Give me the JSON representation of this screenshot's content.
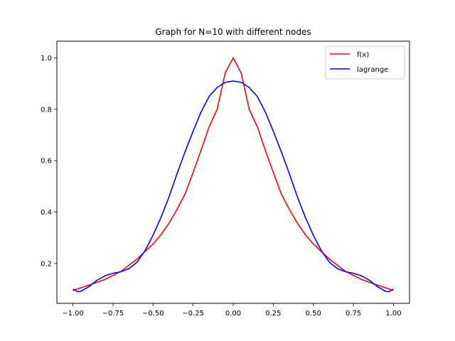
{
  "chart_data": {
    "type": "line",
    "title": "Graph for N=10 with different nodes",
    "xlabel": "",
    "ylabel": "",
    "xlim": [
      -1.1,
      1.1
    ],
    "ylim": [
      0.045,
      1.065
    ],
    "xticks": [
      -1.0,
      -0.75,
      -0.5,
      -0.25,
      0.0,
      0.25,
      0.5,
      0.75,
      1.0
    ],
    "xtick_labels": [
      "−1.00",
      "−0.75",
      "−0.50",
      "−0.25",
      "0.00",
      "0.25",
      "0.50",
      "0.75",
      "1.00"
    ],
    "yticks": [
      0.2,
      0.4,
      0.6,
      0.8,
      1.0
    ],
    "ytick_labels": [
      "0.2",
      "0.4",
      "0.6",
      "0.8",
      "1.0"
    ],
    "grid": false,
    "legend": "top-right",
    "series": [
      {
        "name": "f(x)",
        "color": "#ff0000",
        "x": [
          -1.0,
          -0.9,
          -0.8,
          -0.7,
          -0.6,
          -0.5,
          -0.45,
          -0.4,
          -0.35,
          -0.3,
          -0.25,
          -0.2,
          -0.15,
          -0.1,
          -0.05,
          0.0,
          0.05,
          0.1,
          0.15,
          0.2,
          0.25,
          0.3,
          0.35,
          0.4,
          0.45,
          0.5,
          0.6,
          0.7,
          0.8,
          0.9,
          1.0
        ],
        "y": [
          0.0952,
          0.1159,
          0.1379,
          0.1695,
          0.2174,
          0.2759,
          0.3125,
          0.3571,
          0.411,
          0.4706,
          0.5547,
          0.641,
          0.7323,
          0.8,
          0.9412,
          1.0,
          0.9412,
          0.8,
          0.7323,
          0.641,
          0.5547,
          0.4706,
          0.411,
          0.3571,
          0.3125,
          0.2759,
          0.2174,
          0.1695,
          0.1379,
          0.1159,
          0.0952
        ]
      },
      {
        "name": "lagrange",
        "color": "#0000ff",
        "x": [
          -1.0,
          -0.97,
          -0.95,
          -0.9,
          -0.85,
          -0.8,
          -0.75,
          -0.7,
          -0.65,
          -0.6,
          -0.55,
          -0.5,
          -0.45,
          -0.4,
          -0.35,
          -0.3,
          -0.25,
          -0.2,
          -0.15,
          -0.1,
          -0.05,
          0.0,
          0.05,
          0.1,
          0.15,
          0.2,
          0.25,
          0.3,
          0.35,
          0.4,
          0.45,
          0.5,
          0.55,
          0.6,
          0.65,
          0.7,
          0.75,
          0.8,
          0.85,
          0.9,
          0.95,
          0.97,
          1.0
        ],
        "y": [
          0.1,
          0.09,
          0.092,
          0.11,
          0.135,
          0.152,
          0.162,
          0.168,
          0.18,
          0.205,
          0.25,
          0.31,
          0.38,
          0.46,
          0.55,
          0.635,
          0.715,
          0.79,
          0.85,
          0.885,
          0.905,
          0.91,
          0.905,
          0.885,
          0.85,
          0.79,
          0.715,
          0.635,
          0.55,
          0.46,
          0.38,
          0.31,
          0.25,
          0.205,
          0.18,
          0.168,
          0.162,
          0.152,
          0.135,
          0.11,
          0.092,
          0.09,
          0.1
        ]
      }
    ]
  }
}
